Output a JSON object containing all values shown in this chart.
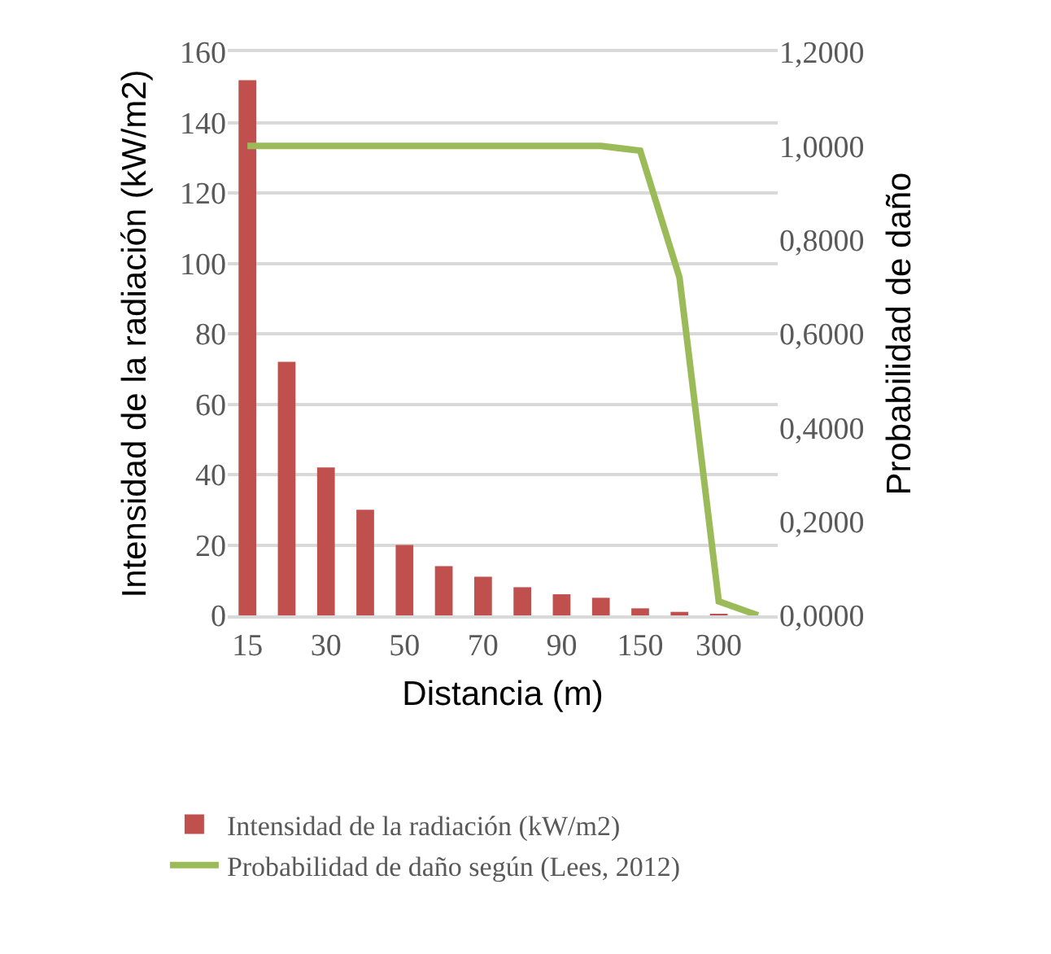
{
  "chart_data": {
    "type": "bar",
    "xlabel": "Distancia (m)",
    "ylabel": "Intensidad de la radiación (kW/m2)",
    "y2label": "Probabilidad de daño",
    "categories": [
      "15",
      null,
      "30",
      null,
      "50",
      null,
      "70",
      null,
      "90",
      null,
      "150",
      null,
      "300",
      null
    ],
    "series": [
      {
        "name": "Intensidad de la radiación (kW/m2)",
        "color": "#c0504d",
        "values": [
          152,
          72,
          42,
          30,
          20,
          14,
          11,
          8,
          6,
          5,
          2,
          1,
          0.3,
          0
        ]
      },
      {
        "name": "Probabilidad de daño según (Lees, 2012)",
        "type": "line",
        "axis": "y2",
        "color": "#9bbb59",
        "values": [
          1,
          1,
          1,
          1,
          1,
          1,
          1,
          1,
          1,
          1,
          0.99,
          0.72,
          0.03,
          0
        ]
      }
    ],
    "ylim": [
      0,
      160
    ],
    "yticks": [
      0,
      20,
      40,
      60,
      80,
      100,
      120,
      140,
      160
    ],
    "y2lim": [
      0,
      1.2
    ],
    "y2ticks": [
      {
        "value": 0,
        "label": "0,0000"
      },
      {
        "value": 0.2,
        "label": "0,2000"
      },
      {
        "value": 0.4,
        "label": "0,4000"
      },
      {
        "value": 0.6,
        "label": "0,6000"
      },
      {
        "value": 0.8,
        "label": "0,8000"
      },
      {
        "value": 1,
        "label": "1,0000"
      },
      {
        "value": 1.2,
        "label": "1,2000"
      }
    ],
    "grid": "y",
    "legend": "bottom"
  }
}
